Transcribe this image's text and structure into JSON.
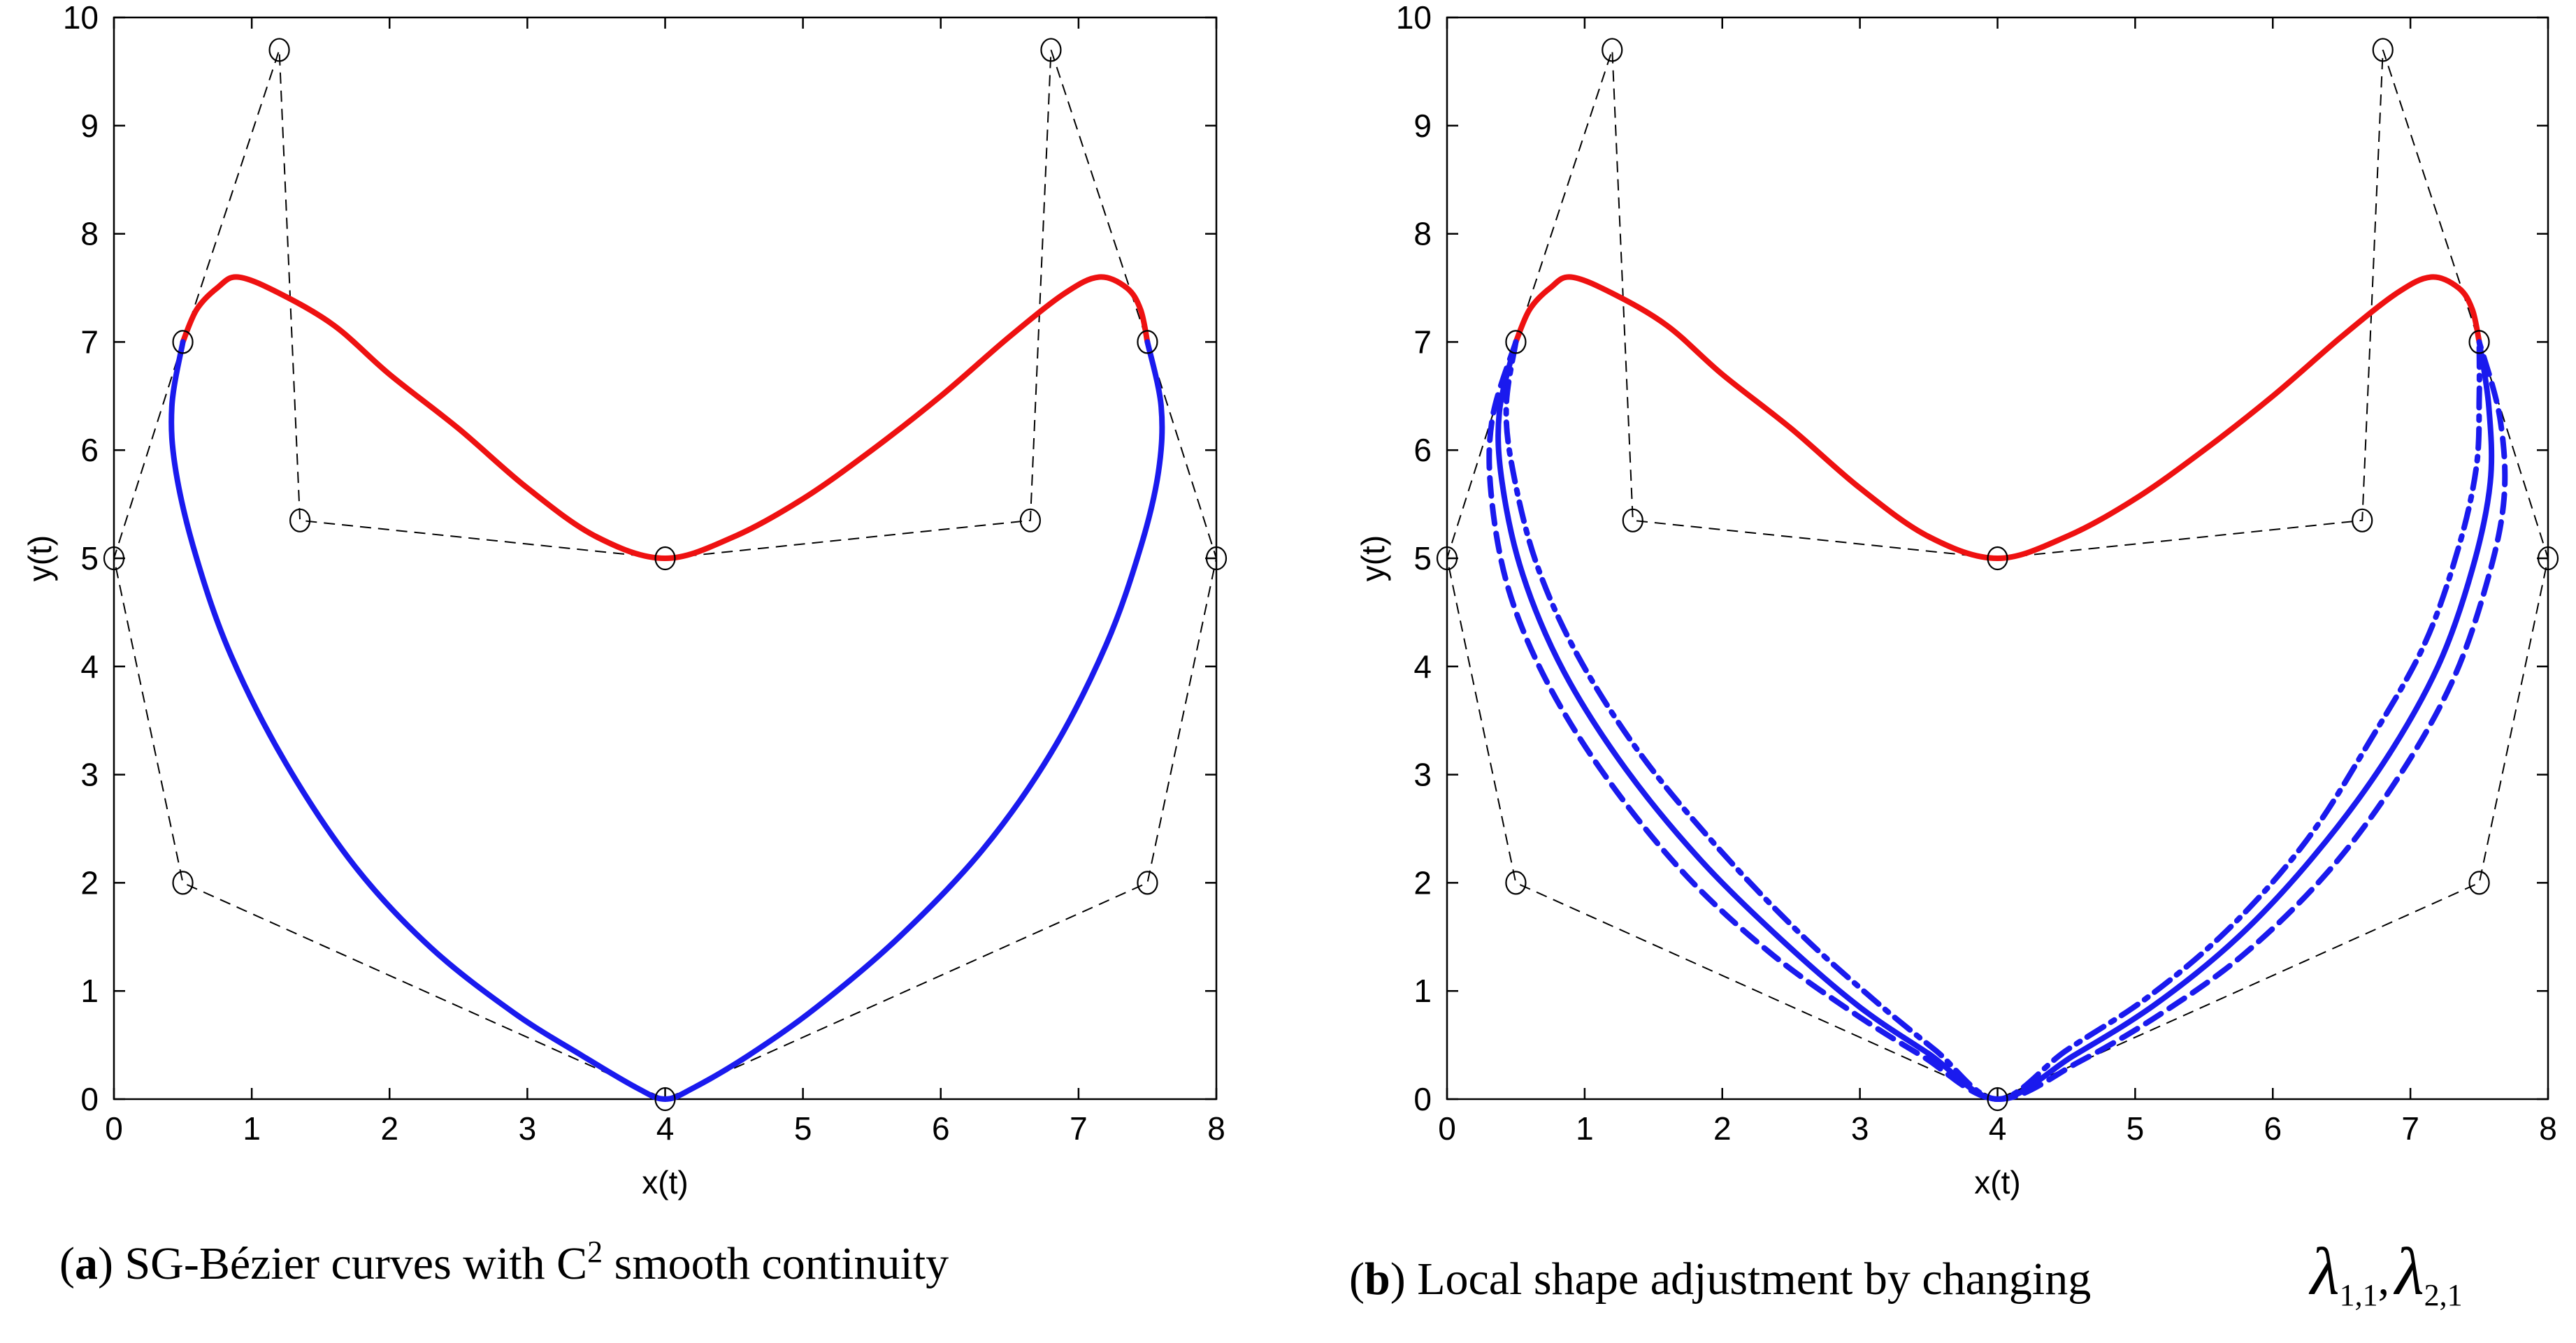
{
  "colors": {
    "upper_curve": "#ee1111",
    "lower_curve": "#1a1aee",
    "axes": "#000000",
    "control": "#000000"
  },
  "chart_data": [
    {
      "type": "line",
      "panel": "a",
      "xlabel": "x(t)",
      "ylabel": "y(t)",
      "xlim": [
        0,
        8
      ],
      "ylim": [
        0,
        10
      ],
      "xticks": [
        "0",
        "1",
        "2",
        "3",
        "4",
        "5",
        "6",
        "7",
        "8"
      ],
      "yticks": [
        "0",
        "1",
        "2",
        "3",
        "4",
        "5",
        "6",
        "7",
        "8",
        "9",
        "10"
      ],
      "caption": {
        "label": "a",
        "text": "SG-Bézier curves with C",
        "sup": "2",
        "text_after": " smooth continuity"
      },
      "control_polygon": [
        [
          0.5,
          7
        ],
        [
          0,
          5
        ],
        [
          0.5,
          2
        ],
        [
          4,
          0
        ],
        [
          7.5,
          2
        ],
        [
          8,
          5
        ],
        [
          7.5,
          7
        ],
        [
          6.8,
          9.7
        ],
        [
          6.65,
          5.35
        ],
        [
          4,
          5
        ],
        [
          1.35,
          5.35
        ],
        [
          1.2,
          9.7
        ],
        [
          0.5,
          7
        ]
      ],
      "control_points": [
        [
          0.5,
          7
        ],
        [
          0,
          5
        ],
        [
          0.5,
          2
        ],
        [
          4,
          0
        ],
        [
          7.5,
          2
        ],
        [
          8,
          5
        ],
        [
          7.5,
          7
        ],
        [
          6.8,
          9.7
        ],
        [
          6.65,
          5.35
        ],
        [
          4,
          5
        ],
        [
          1.35,
          5.35
        ],
        [
          1.2,
          9.7
        ]
      ],
      "series": [
        {
          "name": "upper",
          "color": "upper_curve",
          "style": "solid",
          "points": [
            [
              0.5,
              7
            ],
            [
              0.6,
              7.3
            ],
            [
              0.75,
              7.5
            ],
            [
              0.9,
              7.6
            ],
            [
              1.2,
              7.45
            ],
            [
              1.6,
              7.15
            ],
            [
              2.0,
              6.7
            ],
            [
              2.5,
              6.2
            ],
            [
              3.0,
              5.65
            ],
            [
              3.5,
              5.2
            ],
            [
              4.0,
              5.0
            ],
            [
              4.5,
              5.2
            ],
            [
              5.0,
              5.55
            ],
            [
              5.5,
              6.0
            ],
            [
              6.0,
              6.5
            ],
            [
              6.5,
              7.05
            ],
            [
              6.9,
              7.45
            ],
            [
              7.15,
              7.6
            ],
            [
              7.35,
              7.5
            ],
            [
              7.45,
              7.3
            ],
            [
              7.5,
              7
            ]
          ]
        },
        {
          "name": "lower",
          "color": "lower_curve",
          "style": "solid",
          "points": [
            [
              0.5,
              7
            ],
            [
              0.42,
              6.4
            ],
            [
              0.45,
              5.8
            ],
            [
              0.6,
              5.0
            ],
            [
              0.85,
              4.1
            ],
            [
              1.25,
              3.1
            ],
            [
              1.75,
              2.15
            ],
            [
              2.3,
              1.4
            ],
            [
              2.9,
              0.8
            ],
            [
              3.4,
              0.4
            ],
            [
              3.8,
              0.1
            ],
            [
              4.0,
              0.0
            ],
            [
              4.2,
              0.1
            ],
            [
              4.6,
              0.4
            ],
            [
              5.1,
              0.85
            ],
            [
              5.7,
              1.5
            ],
            [
              6.3,
              2.3
            ],
            [
              6.8,
              3.2
            ],
            [
              7.2,
              4.2
            ],
            [
              7.45,
              5.1
            ],
            [
              7.58,
              5.8
            ],
            [
              7.6,
              6.4
            ],
            [
              7.5,
              7
            ]
          ]
        }
      ]
    },
    {
      "type": "line",
      "panel": "b",
      "xlabel": "x(t)",
      "ylabel": "y(t)",
      "xlim": [
        0,
        8
      ],
      "ylim": [
        0,
        10
      ],
      "xticks": [
        "0",
        "1",
        "2",
        "3",
        "4",
        "5",
        "6",
        "7",
        "8"
      ],
      "yticks": [
        "0",
        "1",
        "2",
        "3",
        "4",
        "5",
        "6",
        "7",
        "8",
        "9",
        "10"
      ],
      "caption": {
        "label": "b",
        "text": "Local shape adjustment by changing",
        "math": "λ",
        "sub1": "1,1",
        "sep": ",",
        "sub2": "2,1"
      },
      "control_polygon": [
        [
          0.5,
          7
        ],
        [
          0,
          5
        ],
        [
          0.5,
          2
        ],
        [
          4,
          0
        ],
        [
          7.5,
          2
        ],
        [
          8,
          5
        ],
        [
          7.5,
          7
        ],
        [
          6.8,
          9.7
        ],
        [
          6.65,
          5.35
        ],
        [
          4,
          5
        ],
        [
          1.35,
          5.35
        ],
        [
          1.2,
          9.7
        ],
        [
          0.5,
          7
        ]
      ],
      "control_points": [
        [
          0.5,
          7
        ],
        [
          0,
          5
        ],
        [
          0.5,
          2
        ],
        [
          4,
          0
        ],
        [
          7.5,
          2
        ],
        [
          8,
          5
        ],
        [
          7.5,
          7
        ],
        [
          6.8,
          9.7
        ],
        [
          6.65,
          5.35
        ],
        [
          4,
          5
        ],
        [
          1.35,
          5.35
        ],
        [
          1.2,
          9.7
        ]
      ],
      "series": [
        {
          "name": "upper",
          "color": "upper_curve",
          "style": "solid",
          "points": [
            [
              0.5,
              7
            ],
            [
              0.6,
              7.3
            ],
            [
              0.75,
              7.5
            ],
            [
              0.9,
              7.6
            ],
            [
              1.2,
              7.45
            ],
            [
              1.6,
              7.15
            ],
            [
              2.0,
              6.7
            ],
            [
              2.5,
              6.2
            ],
            [
              3.0,
              5.65
            ],
            [
              3.5,
              5.2
            ],
            [
              4.0,
              5.0
            ],
            [
              4.5,
              5.2
            ],
            [
              5.0,
              5.55
            ],
            [
              5.5,
              6.0
            ],
            [
              6.0,
              6.5
            ],
            [
              6.5,
              7.05
            ],
            [
              6.9,
              7.45
            ],
            [
              7.15,
              7.6
            ],
            [
              7.35,
              7.5
            ],
            [
              7.45,
              7.3
            ],
            [
              7.5,
              7
            ]
          ]
        },
        {
          "name": "lower-dashed",
          "color": "lower_curve",
          "style": "dashed",
          "points": [
            [
              0.5,
              7
            ],
            [
              0.33,
              6.3
            ],
            [
              0.32,
              5.6
            ],
            [
              0.45,
              4.7
            ],
            [
              0.75,
              3.8
            ],
            [
              1.2,
              2.9
            ],
            [
              1.75,
              2.05
            ],
            [
              2.35,
              1.35
            ],
            [
              2.95,
              0.8
            ],
            [
              3.45,
              0.4
            ],
            [
              4.0,
              0.0
            ],
            [
              4.6,
              0.35
            ],
            [
              5.2,
              0.8
            ],
            [
              5.8,
              1.35
            ],
            [
              6.4,
              2.1
            ],
            [
              6.9,
              2.95
            ],
            [
              7.3,
              3.85
            ],
            [
              7.55,
              4.75
            ],
            [
              7.68,
              5.55
            ],
            [
              7.65,
              6.3
            ],
            [
              7.5,
              7
            ]
          ]
        },
        {
          "name": "lower-solid",
          "color": "lower_curve",
          "style": "solid",
          "points": [
            [
              0.5,
              7
            ],
            [
              0.38,
              6.35
            ],
            [
              0.4,
              5.7
            ],
            [
              0.55,
              4.85
            ],
            [
              0.85,
              3.95
            ],
            [
              1.3,
              3.05
            ],
            [
              1.85,
              2.2
            ],
            [
              2.45,
              1.45
            ],
            [
              3.0,
              0.85
            ],
            [
              3.5,
              0.42
            ],
            [
              4.0,
              0.0
            ],
            [
              4.55,
              0.4
            ],
            [
              5.15,
              0.88
            ],
            [
              5.75,
              1.5
            ],
            [
              6.3,
              2.25
            ],
            [
              6.8,
              3.1
            ],
            [
              7.2,
              4.0
            ],
            [
              7.45,
              4.9
            ],
            [
              7.58,
              5.7
            ],
            [
              7.57,
              6.4
            ],
            [
              7.5,
              7
            ]
          ]
        },
        {
          "name": "lower-dashdot",
          "color": "lower_curve",
          "style": "dashdot",
          "points": [
            [
              0.5,
              7
            ],
            [
              0.43,
              6.4
            ],
            [
              0.48,
              5.8
            ],
            [
              0.65,
              4.95
            ],
            [
              0.95,
              4.1
            ],
            [
              1.4,
              3.2
            ],
            [
              1.95,
              2.35
            ],
            [
              2.55,
              1.55
            ],
            [
              3.1,
              0.92
            ],
            [
              3.55,
              0.45
            ],
            [
              4.0,
              0.0
            ],
            [
              4.5,
              0.45
            ],
            [
              5.1,
              0.95
            ],
            [
              5.7,
              1.6
            ],
            [
              6.25,
              2.4
            ],
            [
              6.7,
              3.3
            ],
            [
              7.1,
              4.2
            ],
            [
              7.35,
              5.1
            ],
            [
              7.48,
              5.85
            ],
            [
              7.5,
              6.5
            ],
            [
              7.5,
              7
            ]
          ]
        }
      ]
    }
  ]
}
